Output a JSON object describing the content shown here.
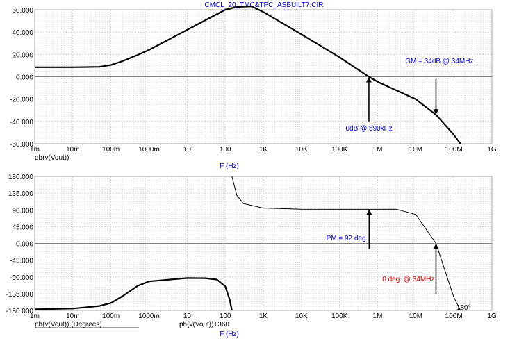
{
  "title": "CMCL_20_TMC&TPC_ASBUILT7.CIR",
  "colors": {
    "background": "#ffffff",
    "grid": "#c8c8c8",
    "zero_line": "#808080",
    "curve": "#000000",
    "label_blue": "#0000cc",
    "label_red": "#cc0000"
  },
  "chart_data": [
    {
      "type": "line",
      "x_scale": "log",
      "xlabel": "F (Hz)",
      "x_tick_labels": [
        "1m",
        "10m",
        "100m",
        "1000m",
        "10",
        "100",
        "1K",
        "10K",
        "100K",
        "1M",
        "10M",
        "100M",
        "1G"
      ],
      "xlim": [
        0.001,
        1000000000
      ],
      "ylim": [
        -60,
        60
      ],
      "y_tick_labels": [
        "60.000",
        "40.000",
        "20.000",
        "0.000",
        "-20.000",
        "-40.000",
        "-60.000"
      ],
      "grid": true,
      "series": [
        {
          "name": "db(v(Vout))",
          "x": [
            0.001,
            0.01,
            0.05,
            0.1,
            0.2,
            0.5,
            1,
            10,
            100,
            200,
            500,
            1000,
            10000,
            100000,
            590000,
            1000000,
            3000000,
            10000000,
            34000000,
            100000000,
            150000000
          ],
          "values": [
            8.5,
            8.5,
            8.9,
            10.5,
            14,
            19.5,
            24,
            42,
            60,
            62.5,
            63,
            58,
            38,
            17.5,
            0,
            -4.5,
            -12,
            -20,
            -34,
            -52,
            -60
          ]
        }
      ],
      "annotations": [
        {
          "text": "GM = 34dB @ 34MHz",
          "x": 34000000,
          "y": -34
        },
        {
          "text": "0dB @ 590kHz",
          "x": 590000,
          "y": 0
        }
      ]
    },
    {
      "type": "line",
      "x_scale": "log",
      "xlabel": "F (Hz)",
      "x_tick_labels": [
        "1m",
        "10m",
        "100m",
        "1000m",
        "10",
        "100",
        "1K",
        "10K",
        "100K",
        "1M",
        "10M",
        "100M",
        "1G"
      ],
      "xlim": [
        0.001,
        1000000000
      ],
      "ylim": [
        -180,
        180
      ],
      "y_tick_labels": [
        "180.000",
        "135.000",
        "90.000",
        "45.000",
        "0.000",
        "-45.000",
        "-90.000",
        "-135.000",
        "-180.000"
      ],
      "grid": true,
      "series": [
        {
          "name": "ph(v(Vout)) (Degrees)",
          "x": [
            0.001,
            0.01,
            0.05,
            0.1,
            0.2,
            0.5,
            1,
            10,
            30,
            60,
            100,
            130,
            150
          ],
          "values": [
            -177,
            -175,
            -168,
            -160,
            -142,
            -114,
            -102,
            -93,
            -93.5,
            -97,
            -115,
            -150,
            -180
          ]
        },
        {
          "name": "ph(v(Vout))+360",
          "x": [
            150,
            200,
            300,
            1000,
            10000,
            100000,
            1000000,
            3000000,
            10000000,
            34000000,
            100000000,
            150000000
          ],
          "values": [
            180,
            130,
            107,
            95,
            92,
            91.5,
            91.5,
            92,
            78,
            0,
            -145,
            -180
          ]
        }
      ],
      "annotations": [
        {
          "text": "PM = 92 deg.",
          "x": 600000,
          "y": 92
        },
        {
          "text": "0 deg. @ 34MHz",
          "x": 34000000,
          "y": 0
        },
        {
          "text": "180°",
          "x": 150000000,
          "y": -180
        }
      ]
    }
  ]
}
